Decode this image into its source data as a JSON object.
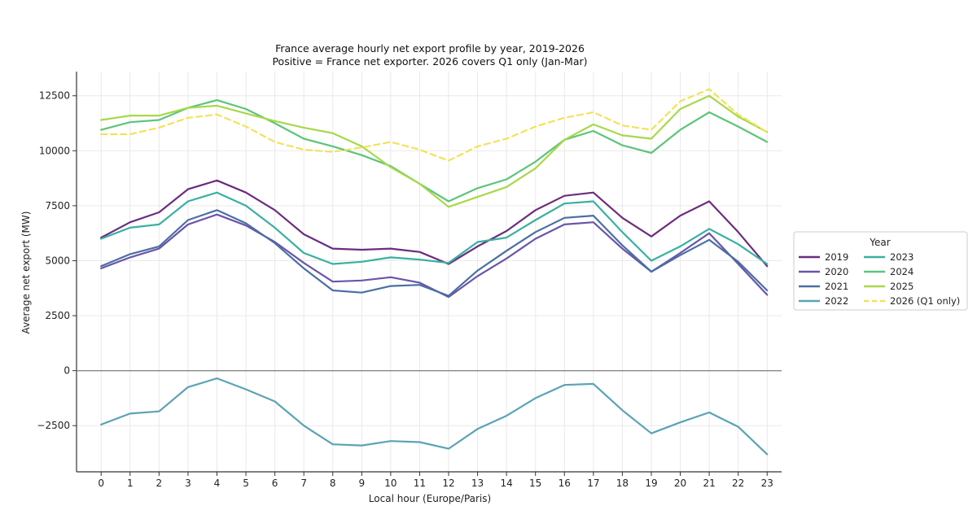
{
  "chart_data": {
    "type": "line",
    "title": "France average hourly net export profile by year, 2019-2026",
    "subtitle": "Positive = France net exporter. 2026 covers Q1 only (Jan-Mar)",
    "xlabel": "Local hour (Europe/Paris)",
    "ylabel": "Average net export (MW)",
    "x": [
      0,
      1,
      2,
      3,
      4,
      5,
      6,
      7,
      8,
      9,
      10,
      11,
      12,
      13,
      14,
      15,
      16,
      17,
      18,
      19,
      20,
      21,
      22,
      23
    ],
    "xlim": [
      -0.85,
      23.5
    ],
    "ylim": [
      -4600,
      13600
    ],
    "yticks": [
      -2500,
      0,
      2500,
      5000,
      7500,
      10000,
      12500
    ],
    "ytick_labels": [
      "−2500",
      "0",
      "2500",
      "5000",
      "7500",
      "10000",
      "12500"
    ],
    "grid": true,
    "zero_line": true,
    "legend": {
      "title": "Year",
      "placement": "right-outside",
      "columns": 2
    },
    "series": [
      {
        "name": "2019",
        "color": "#6b2d7e",
        "dash": "solid",
        "values": [
          6050,
          6750,
          7200,
          8250,
          8650,
          8100,
          7300,
          6200,
          5550,
          5500,
          5550,
          5400,
          4850,
          5650,
          6350,
          7300,
          7950,
          8100,
          6950,
          6100,
          7050,
          7700,
          6300,
          4750
        ]
      },
      {
        "name": "2020",
        "color": "#6b55a8",
        "dash": "solid",
        "values": [
          4650,
          5150,
          5550,
          6650,
          7100,
          6600,
          5850,
          4900,
          4050,
          4100,
          4250,
          4000,
          3350,
          4300,
          5100,
          6000,
          6650,
          6750,
          5550,
          4500,
          5350,
          6250,
          4850,
          3450
        ]
      },
      {
        "name": "2021",
        "color": "#4a6fa3",
        "dash": "solid",
        "values": [
          4750,
          5300,
          5650,
          6850,
          7300,
          6700,
          5800,
          4650,
          3650,
          3550,
          3850,
          3900,
          3400,
          4550,
          5450,
          6300,
          6950,
          7050,
          5700,
          4500,
          5250,
          5950,
          4950,
          3650
        ]
      },
      {
        "name": "2022",
        "color": "#5ba3b5",
        "dash": "solid",
        "values": [
          -2450,
          -1950,
          -1850,
          -750,
          -350,
          -850,
          -1400,
          -2500,
          -3350,
          -3400,
          -3200,
          -3250,
          -3550,
          -2650,
          -2050,
          -1250,
          -650,
          -600,
          -1800,
          -2850,
          -2350,
          -1900,
          -2550,
          -3800
        ]
      },
      {
        "name": "2023",
        "color": "#3ab0a0",
        "dash": "solid",
        "values": [
          6000,
          6500,
          6650,
          7700,
          8100,
          7500,
          6500,
          5350,
          4850,
          4950,
          5150,
          5050,
          4900,
          5850,
          6050,
          6850,
          7600,
          7700,
          6300,
          5000,
          5650,
          6450,
          5750,
          4850
        ]
      },
      {
        "name": "2024",
        "color": "#5ec47a",
        "dash": "solid",
        "values": [
          10950,
          11300,
          11400,
          11950,
          12300,
          11900,
          11250,
          10550,
          10200,
          9800,
          9300,
          8500,
          7700,
          8300,
          8700,
          9500,
          10500,
          10900,
          10250,
          9900,
          10950,
          11750,
          11100,
          10400
        ]
      },
      {
        "name": "2025",
        "color": "#a8d84a",
        "dash": "solid",
        "values": [
          11400,
          11600,
          11600,
          11950,
          12050,
          11700,
          11350,
          11050,
          10800,
          10200,
          9250,
          8500,
          7450,
          7900,
          8350,
          9200,
          10500,
          11200,
          10700,
          10550,
          11900,
          12500,
          11550,
          10850
        ]
      },
      {
        "name": "2026 (Q1 only)",
        "color": "#f2e25a",
        "dash": "dashed",
        "values": [
          10750,
          10750,
          11050,
          11500,
          11650,
          11100,
          10400,
          10050,
          9950,
          10150,
          10400,
          10050,
          9550,
          10200,
          10550,
          11100,
          11500,
          11750,
          11150,
          10950,
          12250,
          12800,
          11650,
          10850
        ]
      }
    ]
  }
}
